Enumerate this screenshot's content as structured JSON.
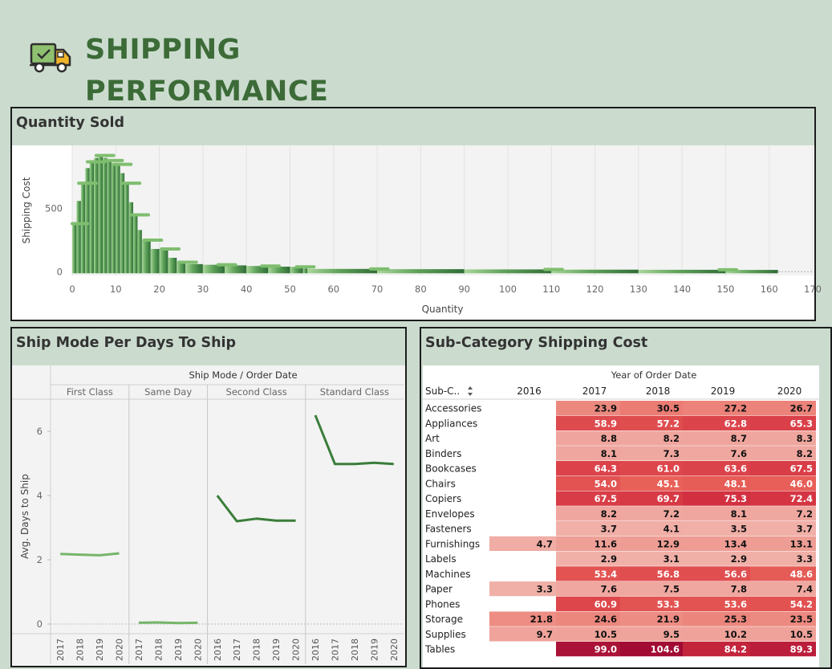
{
  "page": {
    "title_line1": "SHIPPING",
    "title_line2": "PERFORMANCE",
    "icon": "truck-check-icon",
    "colors": {
      "background": "#cbdccf",
      "title": "#3c6b38",
      "plot_bg": "#f3f3f3",
      "line": "#3a7d3a"
    }
  },
  "chart_data": [
    {
      "type": "scatter",
      "title": "Quantity Sold",
      "xlabel": "Quantity",
      "ylabel": "Shipping Cost",
      "xlim": [
        0,
        170
      ],
      "xticks": [
        0,
        10,
        20,
        30,
        40,
        50,
        60,
        70,
        80,
        90,
        100,
        110,
        120,
        130,
        140,
        150,
        160,
        170
      ],
      "yticks": [
        0,
        500
      ],
      "ylim": [
        -30,
        1000
      ],
      "max_cost_by_quantity": [
        {
          "x": 1,
          "y": 380
        },
        {
          "x": 2,
          "y": 560
        },
        {
          "x": 3,
          "y": 700
        },
        {
          "x": 4,
          "y": 820
        },
        {
          "x": 5,
          "y": 870
        },
        {
          "x": 6,
          "y": 900
        },
        {
          "x": 7,
          "y": 920
        },
        {
          "x": 8,
          "y": 900
        },
        {
          "x": 9,
          "y": 880
        },
        {
          "x": 10,
          "y": 860
        },
        {
          "x": 11,
          "y": 850
        },
        {
          "x": 12,
          "y": 780
        },
        {
          "x": 13,
          "y": 700
        },
        {
          "x": 14,
          "y": 550
        },
        {
          "x": 15,
          "y": 450
        },
        {
          "x": 16,
          "y": 330
        },
        {
          "x": 18,
          "y": 250
        },
        {
          "x": 20,
          "y": 180
        },
        {
          "x": 22,
          "y": 180
        },
        {
          "x": 24,
          "y": 110
        },
        {
          "x": 26,
          "y": 75
        },
        {
          "x": 30,
          "y": 60
        },
        {
          "x": 35,
          "y": 55
        },
        {
          "x": 40,
          "y": 50
        },
        {
          "x": 45,
          "y": 45
        },
        {
          "x": 50,
          "y": 40
        },
        {
          "x": 53,
          "y": 38
        },
        {
          "x": 54,
          "y": 26
        },
        {
          "x": 70,
          "y": 22
        },
        {
          "x": 90,
          "y": 20
        },
        {
          "x": 110,
          "y": 18
        },
        {
          "x": 130,
          "y": 16
        },
        {
          "x": 150,
          "y": 15
        },
        {
          "x": 162,
          "y": 14
        }
      ],
      "min_cost": 0
    },
    {
      "type": "line",
      "title": "Ship Mode Per Days To Ship",
      "header": "Ship Mode / Order Date",
      "ylabel": "Avg. Days to Ship",
      "yticks": [
        0,
        2,
        4,
        6
      ],
      "ylim": [
        -0.3,
        7.0
      ],
      "series": [
        {
          "name": "First Class",
          "x": [
            "2017",
            "2018",
            "2019",
            "2020"
          ],
          "values": [
            2.18,
            2.16,
            2.14,
            2.2
          ]
        },
        {
          "name": "Same Day",
          "x": [
            "2017",
            "2018",
            "2019",
            "2020"
          ],
          "values": [
            0.04,
            0.05,
            0.03,
            0.04
          ]
        },
        {
          "name": "Second Class",
          "x": [
            "2016",
            "2017",
            "2018",
            "2019",
            "2020"
          ],
          "values": [
            4.0,
            3.2,
            3.28,
            3.22,
            3.22
          ]
        },
        {
          "name": "Standard Class",
          "x": [
            "2016",
            "2017",
            "2018",
            "2019",
            "2020"
          ],
          "values": [
            6.5,
            4.98,
            4.98,
            5.02,
            4.98
          ]
        }
      ]
    },
    {
      "type": "heatmap",
      "title": "Sub-Category Shipping Cost",
      "header": "Year of Order Date",
      "row_header": "Sub-C..",
      "sort_icon": "sort-icon",
      "columns": [
        "2016",
        "2017",
        "2018",
        "2019",
        "2020"
      ],
      "rows": [
        {
          "label": "Accessories",
          "values": [
            null,
            "23.9",
            "30.5",
            "27.2",
            "26.7"
          ]
        },
        {
          "label": "Appliances",
          "values": [
            null,
            "58.9",
            "57.2",
            "62.8",
            "65.3"
          ]
        },
        {
          "label": "Art",
          "values": [
            null,
            "8.8",
            "8.2",
            "8.7",
            "8.3"
          ]
        },
        {
          "label": "Binders",
          "values": [
            null,
            "8.1",
            "7.3",
            "7.6",
            "8.2"
          ]
        },
        {
          "label": "Bookcases",
          "values": [
            null,
            "64.3",
            "61.0",
            "63.6",
            "67.5"
          ]
        },
        {
          "label": "Chairs",
          "values": [
            null,
            "54.0",
            "45.1",
            "48.1",
            "46.0"
          ]
        },
        {
          "label": "Copiers",
          "values": [
            null,
            "67.5",
            "69.7",
            "75.3",
            "72.4"
          ]
        },
        {
          "label": "Envelopes",
          "values": [
            null,
            "8.2",
            "7.2",
            "8.1",
            "7.2"
          ]
        },
        {
          "label": "Fasteners",
          "values": [
            null,
            "3.7",
            "4.1",
            "3.5",
            "3.7"
          ]
        },
        {
          "label": "Furnishings",
          "values": [
            "4.7",
            "11.6",
            "12.9",
            "13.4",
            "13.1"
          ]
        },
        {
          "label": "Labels",
          "values": [
            null,
            "2.9",
            "3.1",
            "2.9",
            "3.3"
          ]
        },
        {
          "label": "Machines",
          "values": [
            null,
            "53.4",
            "56.8",
            "56.6",
            "48.6"
          ]
        },
        {
          "label": "Paper",
          "values": [
            "3.3",
            "7.6",
            "7.5",
            "7.8",
            "7.4"
          ]
        },
        {
          "label": "Phones",
          "values": [
            null,
            "60.9",
            "53.3",
            "53.6",
            "54.2"
          ]
        },
        {
          "label": "Storage",
          "values": [
            "21.8",
            "24.6",
            "21.9",
            "25.3",
            "23.5"
          ]
        },
        {
          "label": "Supplies",
          "values": [
            "9.7",
            "10.5",
            "9.5",
            "10.2",
            "10.5"
          ]
        },
        {
          "label": "Tables",
          "values": [
            null,
            "99.0",
            "104.6",
            "84.2",
            "89.3"
          ]
        }
      ]
    }
  ]
}
